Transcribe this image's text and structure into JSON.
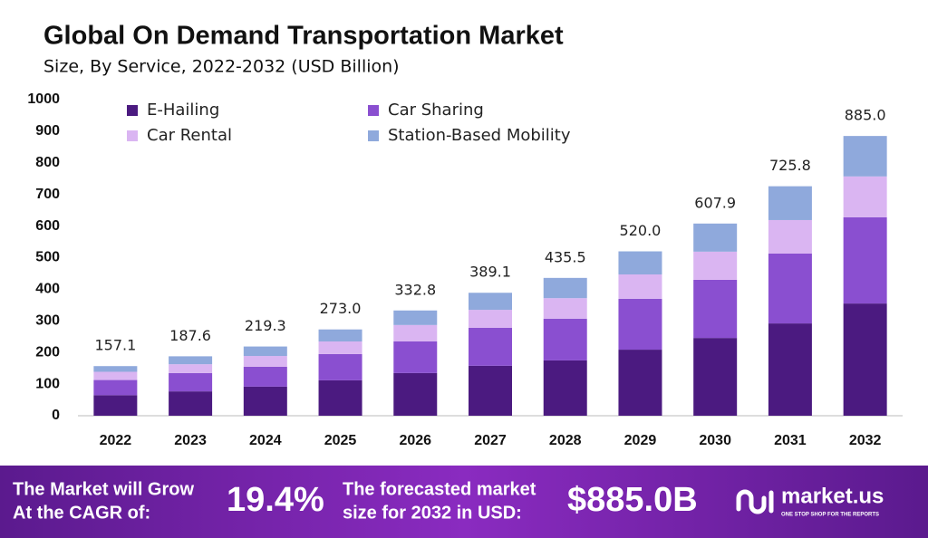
{
  "chart_data": {
    "type": "stacked-bar",
    "title": "Global On Demand Transportation Market",
    "subtitle": "Size, By Service, 2022-2032 (USD Billion)",
    "categories": [
      "2022",
      "2023",
      "2024",
      "2025",
      "2026",
      "2027",
      "2028",
      "2029",
      "2030",
      "2031",
      "2032"
    ],
    "series": [
      {
        "name": "E-Hailing",
        "color": "#4b1a80",
        "values": [
          65,
          77,
          92,
          112,
          135,
          158,
          175,
          209,
          246,
          292,
          355
        ]
      },
      {
        "name": "Car Sharing",
        "color": "#8a4fd0",
        "values": [
          48,
          58,
          63,
          83,
          100,
          120,
          132,
          161,
          184,
          221,
          273
        ]
      },
      {
        "name": "Car Rental",
        "color": "#dab5f2",
        "values": [
          26,
          28,
          34,
          40,
          52,
          57,
          65,
          77,
          89,
          106,
          129
        ]
      },
      {
        "name": "Station-Based Mobility",
        "color": "#8fa9dc",
        "values": [
          18,
          25,
          30,
          38,
          46,
          54,
          64,
          73,
          89,
          107,
          128
        ]
      }
    ],
    "totals": {
      "values": [
        157.1,
        187.6,
        219.3,
        273.0,
        332.8,
        389.1,
        435.5,
        520.0,
        607.9,
        725.8,
        885.0
      ],
      "value_labels": [
        "157.1",
        "187.6",
        "219.3",
        "273.0",
        "332.8",
        "389.1",
        "435.5",
        "520.0",
        "607.9",
        "725.8",
        "885.0"
      ]
    },
    "ylim": [
      0,
      1000
    ],
    "yticks": [
      0,
      100,
      200,
      300,
      400,
      500,
      600,
      700,
      800,
      900,
      1000
    ],
    "grid": false
  },
  "footer": {
    "cagr_text": [
      "The Market will Grow",
      "At the CAGR of:"
    ],
    "cagr_value": "19.4%",
    "forecast_text": [
      "The forecasted market",
      "size for 2032 in USD:"
    ],
    "forecast_value": "$885.0B",
    "brand": "market.us",
    "tagline": "ONE STOP SHOP FOR THE REPORTS"
  }
}
